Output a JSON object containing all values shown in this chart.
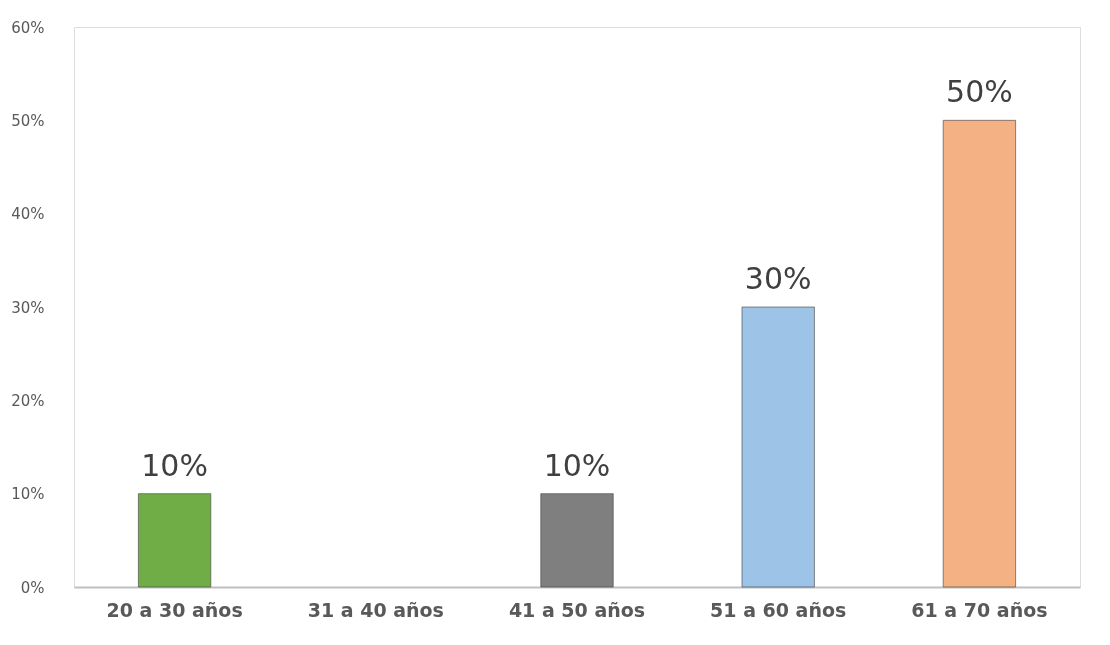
{
  "chart_data": {
    "type": "bar",
    "categories": [
      "20 a 30 años",
      "31 a 40 años",
      "41 a 50 años",
      "51 a 60 años",
      "61 a 70 años"
    ],
    "values": [
      10,
      null,
      10,
      30,
      50
    ],
    "colors": [
      "#70ad47",
      "#a5a5a5",
      "#7f7f7f",
      "#9dc3e6",
      "#f4b183"
    ],
    "value_labels": [
      "10%",
      null,
      "10%",
      "30%",
      "50%"
    ],
    "ylim": [
      0,
      60
    ],
    "yticks": [
      {
        "value": 0,
        "label": "0%"
      },
      {
        "value": 10,
        "label": "10%"
      },
      {
        "value": 20,
        "label": "20%"
      },
      {
        "value": 30,
        "label": "30%"
      },
      {
        "value": 40,
        "label": "40%"
      },
      {
        "value": 50,
        "label": "50%"
      },
      {
        "value": 60,
        "label": "60%"
      }
    ],
    "grid": false
  }
}
